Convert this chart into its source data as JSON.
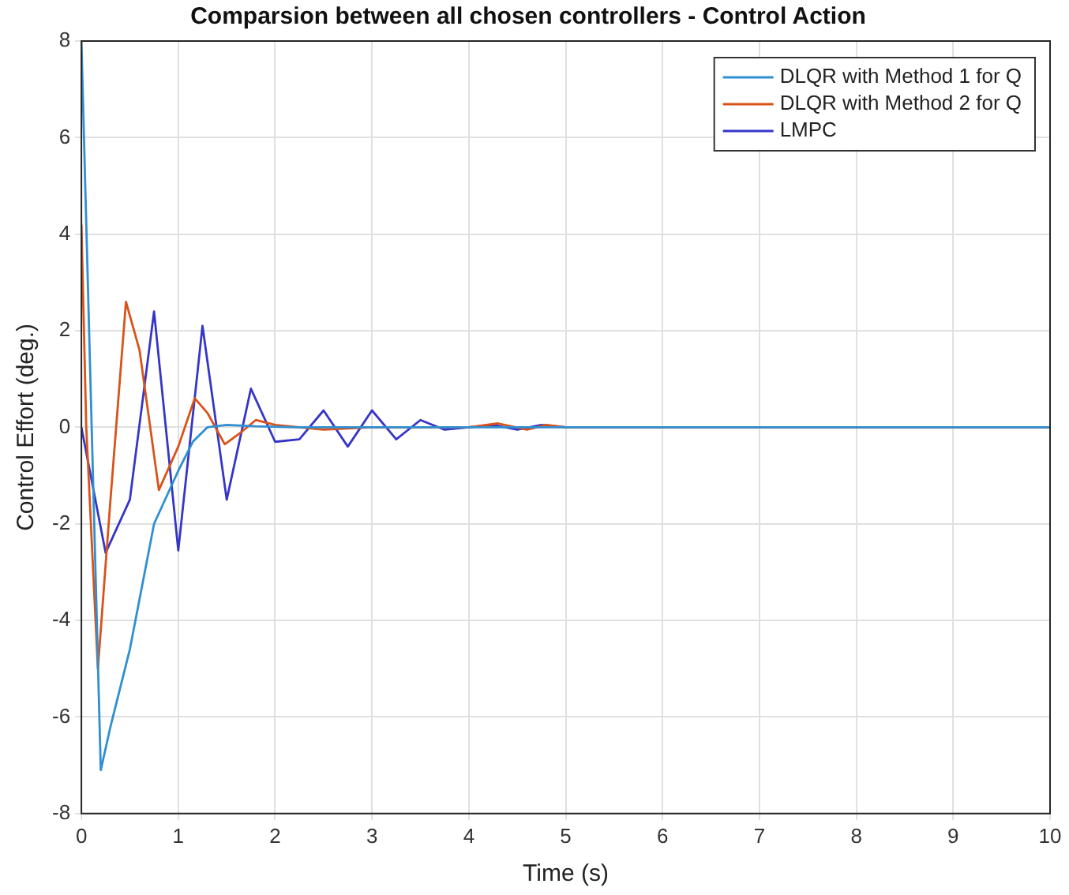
{
  "chart_data": {
    "type": "line",
    "title": "Comparsion between all chosen controllers - Control Action",
    "xlabel": "Time (s)",
    "ylabel": "Control Effort (deg.)",
    "xlim": [
      0,
      10
    ],
    "xticks": [
      0,
      1,
      2,
      3,
      4,
      5,
      6,
      7,
      8,
      9,
      10
    ],
    "ylim": [
      -8,
      8
    ],
    "yticks": [
      -8,
      -6,
      -4,
      -2,
      0,
      2,
      4,
      6,
      8
    ],
    "grid": true,
    "legend": "top right",
    "marker": "none",
    "line_style": "solid",
    "series": [
      {
        "name": "DLQR with Method 1 for Q",
        "color": "#2f8fd0",
        "x": [
          0,
          0.2,
          0.3,
          0.5,
          0.75,
          1,
          1.15,
          1.3,
          1.5,
          1.8,
          2.2,
          3,
          5,
          10
        ],
        "values": [
          8,
          -7.1,
          -6.2,
          -4.6,
          -2.0,
          -0.9,
          -0.3,
          0,
          0.05,
          0.02,
          0,
          0,
          0,
          0
        ]
      },
      {
        "name": "DLQR with Method 2 for Q",
        "color": "#d95319",
        "x": [
          0,
          0.05,
          0.17,
          0.3,
          0.46,
          0.6,
          0.8,
          1,
          1.17,
          1.3,
          1.48,
          1.65,
          1.8,
          2,
          2.5,
          3,
          3.5,
          4,
          4.3,
          4.6,
          4.8,
          5,
          10
        ],
        "values": [
          4.2,
          0,
          -5.0,
          -1.5,
          2.6,
          1.6,
          -1.3,
          -0.4,
          0.6,
          0.3,
          -0.35,
          -0.1,
          0.15,
          0.05,
          -0.05,
          0,
          0,
          0,
          0.08,
          -0.05,
          0.05,
          0,
          0
        ]
      },
      {
        "name": "LMPC",
        "color": "#3535c8",
        "x": [
          0,
          0.25,
          0.5,
          0.75,
          1,
          1.25,
          1.5,
          1.75,
          2,
          2.25,
          2.5,
          2.75,
          3,
          3.25,
          3.5,
          3.75,
          4,
          4.25,
          4.5,
          4.75,
          5,
          10
        ],
        "values": [
          0,
          -2.6,
          -1.5,
          2.4,
          -2.55,
          2.1,
          -1.5,
          0.8,
          -0.3,
          -0.25,
          0.35,
          -0.4,
          0.35,
          -0.25,
          0.15,
          -0.05,
          0,
          0.05,
          -0.05,
          0.05,
          0,
          0
        ]
      }
    ]
  }
}
